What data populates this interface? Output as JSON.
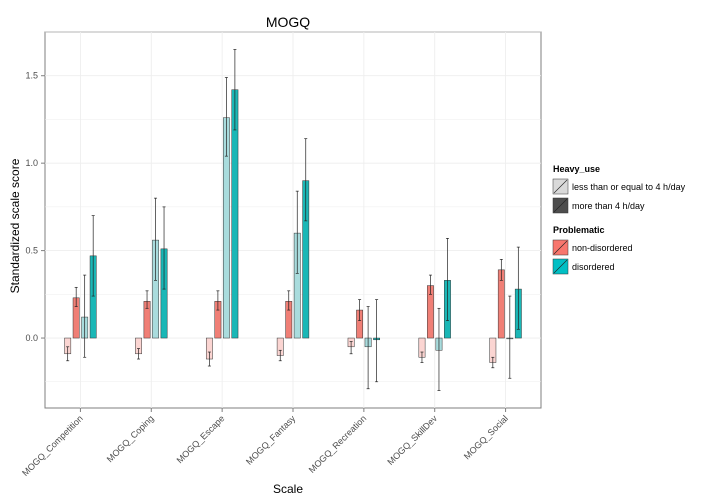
{
  "chart_data": {
    "type": "bar",
    "title": "MOGQ",
    "xlabel": "Scale",
    "ylabel": "Standardized scale score",
    "ylim": [
      -0.4,
      1.75
    ],
    "yticks": [
      "0.0",
      "0.5",
      "1.0",
      "1.5"
    ],
    "grid": true,
    "legend_placement": "right",
    "categories": [
      "MOGQ_Competition",
      "MOGQ_Coping",
      "MOGQ_Escape",
      "MOGQ_Fantasy",
      "MOGQ_Recreation",
      "MOGQ_SkillDev",
      "MOGQ_Social"
    ],
    "legends": [
      {
        "title": "Heavy_use",
        "entries": [
          {
            "label": "less than or equal to 4 h/day",
            "color": "#d9d9d9"
          },
          {
            "label": "more than 4 h/day",
            "color": "#4d4d4d"
          }
        ]
      },
      {
        "title": "Problematic",
        "entries": [
          {
            "label": "non-disordered",
            "color": "#f8766d"
          },
          {
            "label": "disordered",
            "color": "#00bfc4"
          }
        ]
      }
    ],
    "series": [
      {
        "heavy_use": "less than or equal to 4 h/day",
        "problematic": "non-disordered",
        "color": "#fbd5d2",
        "values": [
          -0.09,
          -0.09,
          -0.12,
          -0.1,
          -0.05,
          -0.11,
          -0.14
        ],
        "err_low": [
          -0.13,
          -0.12,
          -0.16,
          -0.13,
          -0.09,
          -0.14,
          -0.17
        ],
        "err_high": [
          -0.05,
          -0.06,
          -0.08,
          -0.07,
          -0.02,
          -0.08,
          -0.11
        ]
      },
      {
        "heavy_use": "more than 4 h/day",
        "problematic": "non-disordered",
        "color": "#f07f76",
        "values": [
          0.23,
          0.21,
          0.21,
          0.21,
          0.16,
          0.3,
          0.39
        ],
        "err_low": [
          0.18,
          0.17,
          0.16,
          0.16,
          0.1,
          0.25,
          0.33
        ],
        "err_high": [
          0.29,
          0.27,
          0.27,
          0.27,
          0.22,
          0.36,
          0.45
        ]
      },
      {
        "heavy_use": "less than or equal to 4 h/day",
        "problematic": "disordered",
        "color": "#a9dcdd",
        "values": [
          0.12,
          0.56,
          1.26,
          0.6,
          -0.05,
          -0.07,
          0.0
        ],
        "err_low": [
          -0.11,
          0.33,
          1.04,
          0.37,
          -0.29,
          -0.3,
          -0.23
        ],
        "err_high": [
          0.36,
          0.8,
          1.49,
          0.84,
          0.18,
          0.17,
          0.24
        ]
      },
      {
        "heavy_use": "more than 4 h/day",
        "problematic": "disordered",
        "color": "#1ab7b6",
        "values": [
          0.47,
          0.51,
          1.42,
          0.9,
          -0.01,
          0.33,
          0.28
        ],
        "err_low": [
          0.24,
          0.28,
          1.19,
          0.67,
          -0.25,
          0.1,
          0.05
        ],
        "err_high": [
          0.7,
          0.75,
          1.65,
          1.14,
          0.22,
          0.57,
          0.52
        ]
      }
    ]
  }
}
